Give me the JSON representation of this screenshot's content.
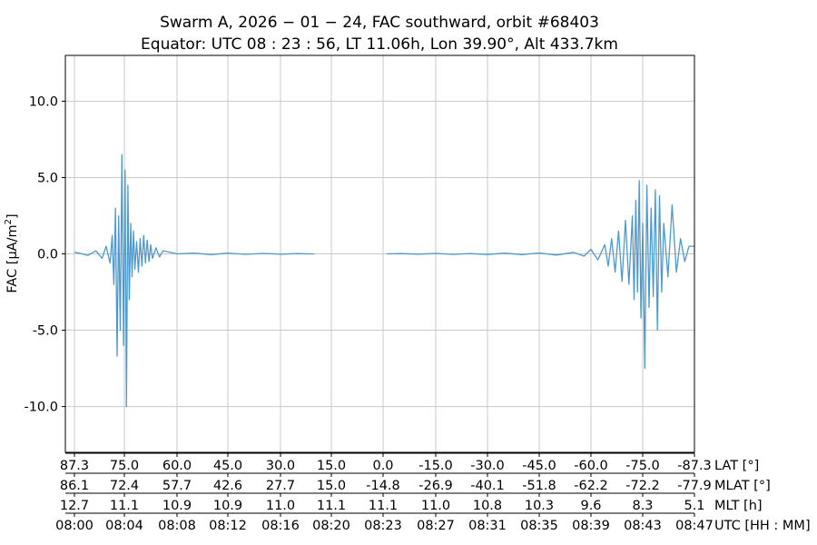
{
  "chart_data": {
    "type": "line",
    "title_line1": "Swarm A,  2026 − 01 − 24,  FAC southward,  orbit #68403",
    "title_line2": "Equator:  UTC 08 : 23 : 56,  LT 11.06h,  Lon 39.90°,  Alt 433.7km",
    "ylabel_main": "FAC [μA/m",
    "ylabel_sup": "2",
    "ylabel_close": "]",
    "ylim": [
      -13,
      13
    ],
    "yticks": [
      {
        "value": 10,
        "label": "10.0"
      },
      {
        "value": 5,
        "label": "5.0"
      },
      {
        "value": 0,
        "label": "0.0"
      },
      {
        "value": -5,
        "label": "-5.0"
      },
      {
        "value": -10,
        "label": "-10.0"
      }
    ],
    "grid": true,
    "line_color": "#4c9acd",
    "x_rows": [
      {
        "name": "LAT [°]",
        "labels": [
          "87.3",
          "75.0",
          "60.0",
          "45.0",
          "30.0",
          "15.0",
          "0.0",
          "-15.0",
          "-30.0",
          "-45.0",
          "-60.0",
          "-75.0",
          "-87.3"
        ]
      },
      {
        "name": "MLAT [°]",
        "labels": [
          "86.1",
          "72.4",
          "57.7",
          "42.6",
          "27.7",
          "15.0",
          "-14.8",
          "-26.9",
          "-40.1",
          "-51.8",
          "-62.2",
          "-72.2",
          "-77.9"
        ]
      },
      {
        "name": "MLT [h]",
        "labels": [
          "12.7",
          "11.1",
          "10.9",
          "10.9",
          "11.0",
          "11.1",
          "11.1",
          "11.0",
          "10.8",
          "10.3",
          "9.6",
          "8.3",
          "5.1"
        ]
      },
      {
        "name": "UTC [HH : MM]",
        "labels": [
          "08:00",
          "08:04",
          "08:08",
          "08:12",
          "08:16",
          "08:20",
          "08:23",
          "08:27",
          "08:31",
          "08:35",
          "08:39",
          "08:43",
          "08:47"
        ]
      }
    ],
    "series": [
      {
        "values_note": "",
        "x": [
          87.3,
          86,
          84,
          82,
          80.5,
          79.5,
          78.5,
          78,
          77.6,
          77.2,
          76.8,
          76.4,
          76.0,
          75.6,
          75.2,
          74.8,
          74.4,
          74.0,
          73.6,
          73.2,
          72.8,
          72.4,
          72,
          71.5,
          71,
          70.5,
          70,
          69.5,
          69,
          68.5,
          68,
          67.5,
          67,
          66,
          65,
          64,
          62,
          60,
          55,
          50,
          45,
          40,
          35,
          30,
          25,
          22,
          20
        ],
        "y": [
          0.1,
          0.05,
          -0.1,
          0.2,
          -0.3,
          0.5,
          -0.6,
          1.2,
          -2.0,
          3.0,
          -6.7,
          2.5,
          -5.0,
          6.5,
          -6.0,
          5.5,
          -10.0,
          4.5,
          -3.0,
          2.0,
          -1.5,
          1.5,
          -1.0,
          0.8,
          -1.2,
          1.0,
          -0.8,
          1.2,
          -0.6,
          0.9,
          -0.5,
          0.6,
          -0.3,
          0.4,
          -0.2,
          0.2,
          0.1,
          0.0,
          0.05,
          -0.05,
          0.05,
          -0.03,
          0.03,
          -0.02,
          0.02,
          0.0,
          0.0
        ]
      },
      {
        "values_note": "",
        "x": [
          -1,
          -5,
          -10,
          -15,
          -20,
          -25,
          -30,
          -35,
          -40,
          -45,
          -50,
          -55,
          -58,
          -60,
          -62,
          -64,
          -65,
          -66,
          -67,
          -68,
          -69,
          -70,
          -71,
          -72,
          -72.5,
          -73,
          -73.5,
          -74,
          -74.5,
          -75,
          -75.5,
          -76,
          -76.5,
          -77,
          -77.5,
          -78,
          -78.5,
          -79,
          -79.5,
          -80,
          -81,
          -82,
          -83,
          -84,
          -85,
          -86,
          -87.3
        ],
        "y": [
          0.0,
          0.02,
          -0.02,
          0.03,
          -0.03,
          0.02,
          -0.04,
          0.05,
          -0.05,
          0.06,
          -0.08,
          0.1,
          -0.15,
          0.3,
          -0.4,
          0.6,
          -0.8,
          1.0,
          -1.2,
          1.5,
          -1.8,
          2.2,
          -2.0,
          2.5,
          -3.0,
          3.5,
          -2.5,
          4.8,
          -4.2,
          2.0,
          -7.5,
          4.5,
          -3.5,
          3.0,
          -2.8,
          4.2,
          -5.0,
          3.8,
          -2.5,
          2.0,
          -1.5,
          3.2,
          -1.2,
          1.0,
          -0.5,
          0.5,
          0.5
        ]
      }
    ]
  }
}
